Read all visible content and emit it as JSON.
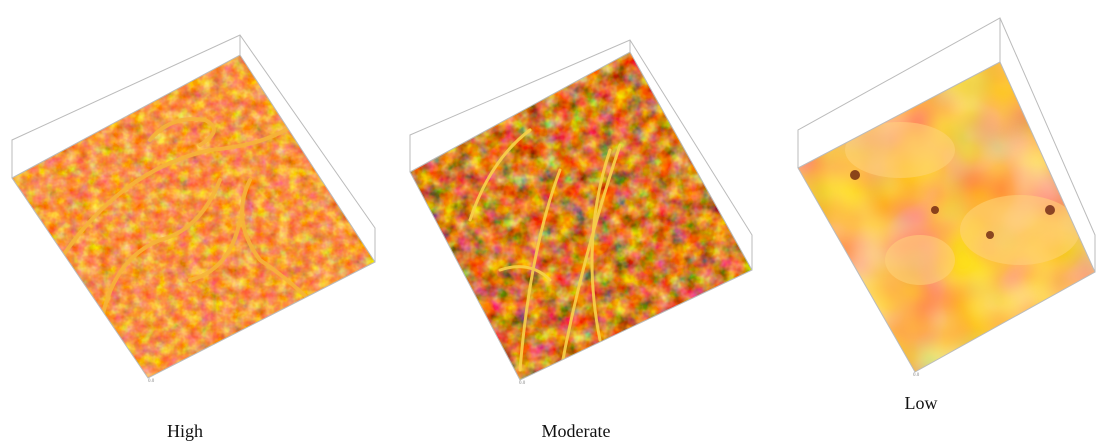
{
  "panels": [
    {
      "label": "High"
    },
    {
      "label": "Moderate"
    },
    {
      "label": "Low"
    }
  ]
}
